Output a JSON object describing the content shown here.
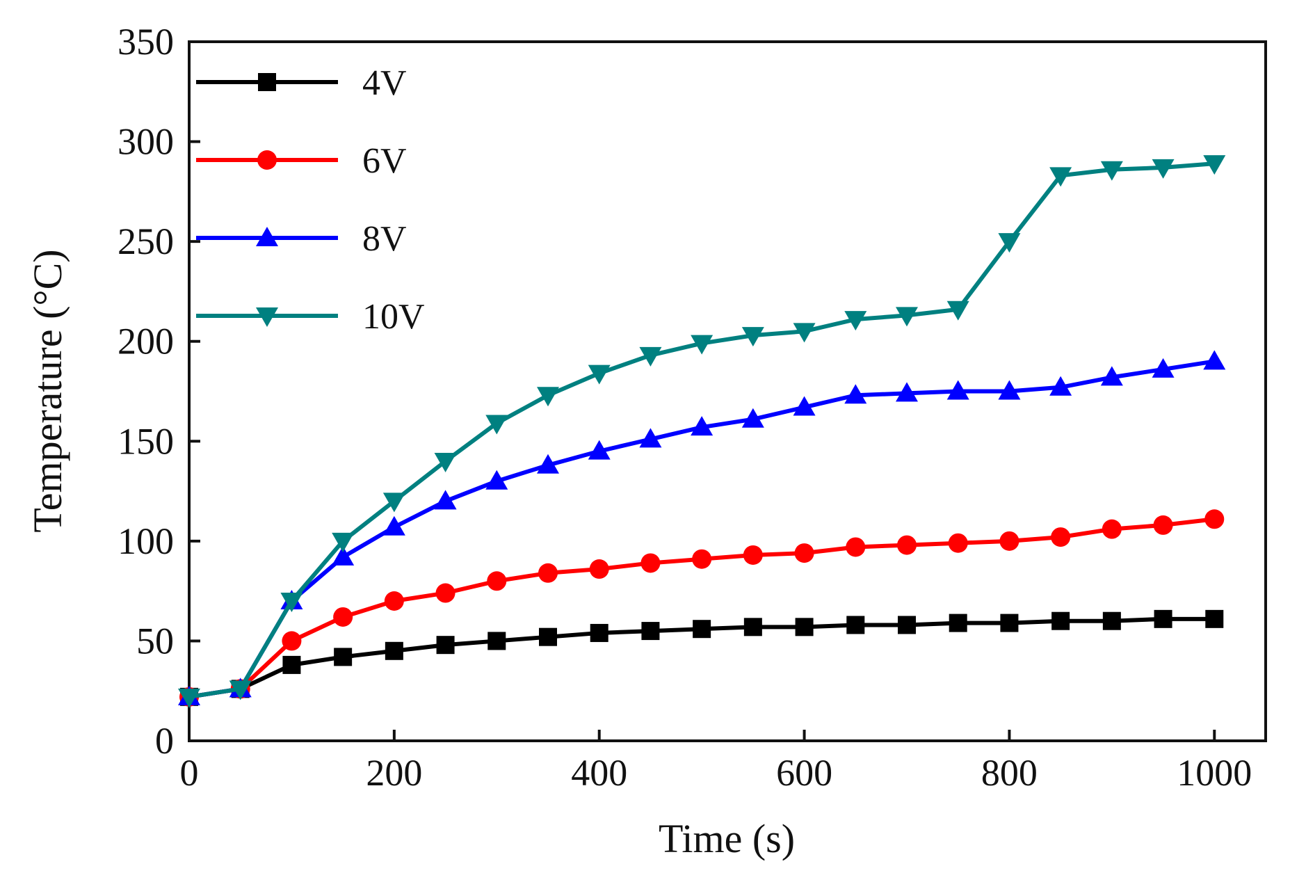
{
  "chart_data": {
    "type": "line",
    "title": "",
    "xlabel": "Time (s)",
    "ylabel": "Temperature (°C)",
    "xlim": [
      0,
      1050
    ],
    "ylim": [
      0,
      350
    ],
    "xticks": [
      0,
      200,
      400,
      600,
      800,
      1000
    ],
    "yticks": [
      0,
      50,
      100,
      150,
      200,
      250,
      300,
      350
    ],
    "grid": false,
    "legend_position": "top-left",
    "x": [
      0,
      50,
      100,
      150,
      200,
      250,
      300,
      350,
      400,
      450,
      500,
      550,
      600,
      650,
      700,
      750,
      800,
      850,
      900,
      950,
      1000
    ],
    "series": [
      {
        "name": "4V",
        "color": "#000000",
        "marker": "square",
        "values": [
          22,
          26,
          38,
          42,
          45,
          48,
          50,
          52,
          54,
          55,
          56,
          57,
          57,
          58,
          58,
          59,
          59,
          60,
          60,
          61,
          61
        ]
      },
      {
        "name": "6V",
        "color": "#ff0000",
        "marker": "circle",
        "values": [
          22,
          26,
          50,
          62,
          70,
          74,
          80,
          84,
          86,
          89,
          91,
          93,
          94,
          97,
          98,
          99,
          100,
          102,
          106,
          108,
          111
        ]
      },
      {
        "name": "8V",
        "color": "#0000ff",
        "marker": "triangle-up",
        "values": [
          22,
          26,
          70,
          92,
          107,
          120,
          130,
          138,
          145,
          151,
          157,
          161,
          167,
          173,
          174,
          175,
          175,
          177,
          182,
          186,
          190
        ]
      },
      {
        "name": "10V",
        "color": "#008080",
        "marker": "triangle-down",
        "values": [
          22,
          26,
          70,
          100,
          120,
          140,
          159,
          173,
          184,
          193,
          199,
          203,
          205,
          211,
          213,
          216,
          250,
          283,
          286,
          287,
          289
        ]
      }
    ]
  }
}
